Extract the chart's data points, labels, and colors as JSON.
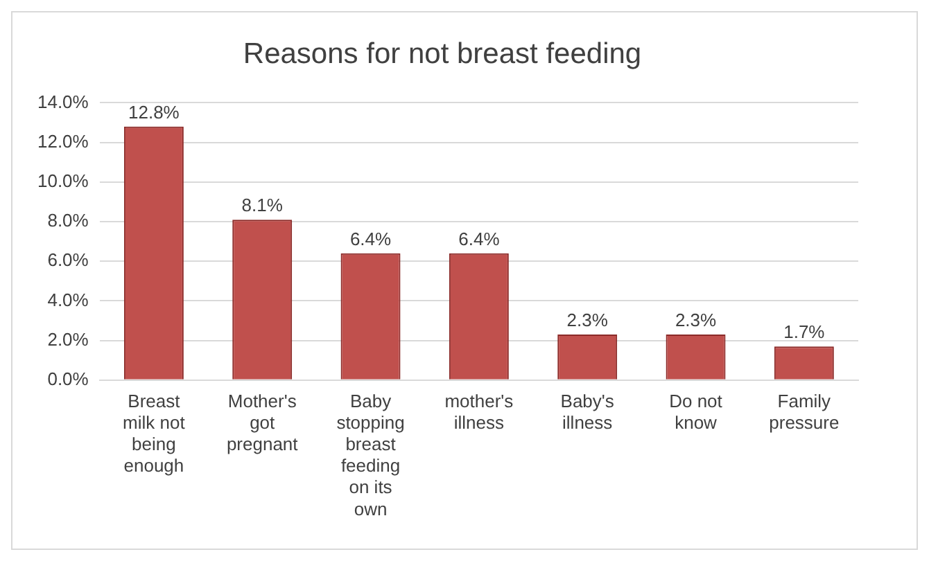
{
  "chart_data": {
    "type": "bar",
    "title": "Reasons for not breast feeding",
    "categories": [
      "Breast milk not being enough",
      "Mother's got pregnant",
      "Baby stopping breast feeding on its own",
      "mother's illness",
      "Baby's illness",
      "Do not know",
      "Family pressure"
    ],
    "values": [
      12.8,
      8.1,
      6.4,
      6.4,
      2.3,
      2.3,
      1.7
    ],
    "value_labels": [
      "12.8%",
      "8.1%",
      "6.4%",
      "6.4%",
      "2.3%",
      "2.3%",
      "1.7%"
    ],
    "color": "#c0504d",
    "ylim": [
      0,
      14
    ],
    "yticks": [
      {
        "value": 0,
        "label": "0.0%"
      },
      {
        "value": 2,
        "label": "2.0%"
      },
      {
        "value": 4,
        "label": "4.0%"
      },
      {
        "value": 6,
        "label": "6.0%"
      },
      {
        "value": 8,
        "label": "8.0%"
      },
      {
        "value": 10,
        "label": "10.0%"
      },
      {
        "value": 12,
        "label": "12.0%"
      },
      {
        "value": 14,
        "label": "14.0%"
      }
    ],
    "grid": "y"
  }
}
